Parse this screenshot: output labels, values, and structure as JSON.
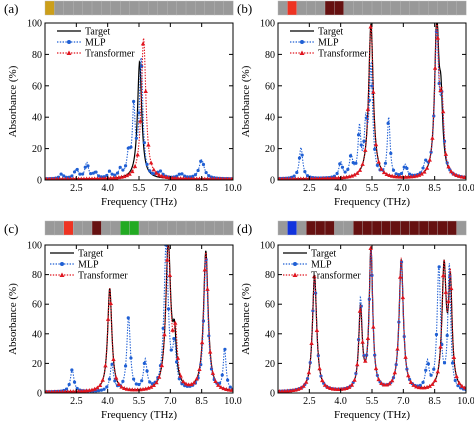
{
  "caption": "",
  "chart_data": [
    {
      "panel_label": "(a)",
      "type": "line",
      "xlabel": "Frequency (THz)",
      "ylabel": "Absorbance (%)",
      "xlim": [
        1.0,
        10.0
      ],
      "ylim": [
        0,
        100
      ],
      "xticks": [
        "2.5",
        "4.0",
        "5.5",
        "7.0",
        "8.5",
        "10.0"
      ],
      "yticks": [
        "0",
        "20",
        "40",
        "60",
        "80",
        "100"
      ],
      "legend_position": "top-center",
      "structure_bar": [
        "#cc9f1a",
        "#999999",
        "#999999",
        "#999999",
        "#999999",
        "#999999",
        "#999999",
        "#999999",
        "#999999",
        "#999999",
        "#999999",
        "#999999",
        "#999999",
        "#999999",
        "#999999",
        "#999999",
        "#999999",
        "#999999",
        "#999999",
        "#999999"
      ],
      "series": [
        {
          "name": "Target",
          "color": "#000000",
          "style": "solid",
          "peaks": [
            [
              5.53,
              75,
              0.12
            ]
          ]
        },
        {
          "name": "MLP",
          "color": "#1f5fd4",
          "style": "dotted",
          "marker": "circle",
          "peaks": [
            [
              1.8,
              3,
              0.1
            ],
            [
              2.5,
              6,
              0.12
            ],
            [
              3.0,
              10,
              0.1
            ],
            [
              3.4,
              4,
              0.1
            ],
            [
              4.1,
              4,
              0.1
            ],
            [
              4.6,
              5,
              0.1
            ],
            [
              5.0,
              14,
              0.1
            ],
            [
              5.25,
              42,
              0.08
            ],
            [
              5.6,
              75,
              0.1
            ],
            [
              6.5,
              4,
              0.15
            ],
            [
              7.5,
              3,
              0.15
            ],
            [
              8.5,
              12,
              0.15
            ]
          ]
        },
        {
          "name": "Transformer",
          "color": "#e0151f",
          "style": "dotted",
          "marker": "triangle",
          "peaks": [
            [
              5.72,
              90,
              0.13
            ]
          ]
        }
      ]
    },
    {
      "panel_label": "(b)",
      "type": "line",
      "xlabel": "Frequency (THz)",
      "ylabel": "Absorbance (%)",
      "xlim": [
        1.0,
        10.0
      ],
      "ylim": [
        0,
        100
      ],
      "xticks": [
        "2.5",
        "4.0",
        "5.5",
        "7.0",
        "8.5",
        "10.0"
      ],
      "yticks": [
        "0",
        "20",
        "40",
        "60",
        "80",
        "100"
      ],
      "legend_position": "top-center",
      "structure_bar": [
        "#999999",
        "#ee3322",
        "#999999",
        "#999999",
        "#999999",
        "#661111",
        "#661111",
        "#999999",
        "#999999",
        "#999999",
        "#999999",
        "#999999",
        "#999999",
        "#999999",
        "#999999",
        "#999999",
        "#999999",
        "#999999",
        "#999999",
        "#999999"
      ],
      "series": [
        {
          "name": "Target",
          "color": "#000000",
          "style": "solid",
          "peaks": [
            [
              5.45,
              99,
              0.13
            ],
            [
              8.6,
              97,
              0.12
            ],
            [
              8.8,
              40,
              0.1
            ]
          ]
        },
        {
          "name": "MLP",
          "color": "#1f5fd4",
          "style": "dotted",
          "marker": "circle",
          "peaks": [
            [
              2.1,
              20,
              0.1
            ],
            [
              4.0,
              10,
              0.1
            ],
            [
              4.5,
              13,
              0.1
            ],
            [
              4.9,
              30,
              0.08
            ],
            [
              5.2,
              30,
              0.08
            ],
            [
              5.45,
              70,
              0.1
            ],
            [
              6.3,
              38,
              0.08
            ],
            [
              7.1,
              8,
              0.1
            ],
            [
              8.05,
              7,
              0.1
            ],
            [
              8.6,
              90,
              0.12
            ],
            [
              8.85,
              38,
              0.1
            ]
          ]
        },
        {
          "name": "Transformer",
          "color": "#e0151f",
          "style": "dotted",
          "marker": "triangle",
          "peaks": [
            [
              5.45,
              98,
              0.13
            ],
            [
              8.6,
              96,
              0.12
            ],
            [
              8.85,
              40,
              0.1
            ]
          ]
        }
      ]
    },
    {
      "panel_label": "(c)",
      "type": "line",
      "xlabel": "Frequency (THz)",
      "ylabel": "Absorbance (%)",
      "xlim": [
        1.0,
        10.0
      ],
      "ylim": [
        0,
        100
      ],
      "xticks": [
        "2.5",
        "4.0",
        "5.5",
        "7.0",
        "8.5",
        "10.0"
      ],
      "yticks": [
        "0",
        "20",
        "40",
        "60",
        "80",
        "100"
      ],
      "legend_position": "top-left",
      "structure_bar": [
        "#999999",
        "#999999",
        "#ee3322",
        "#999999",
        "#999999",
        "#661111",
        "#999999",
        "#999999",
        "#22aa22",
        "#22aa22",
        "#999999",
        "#999999",
        "#999999",
        "#999999",
        "#999999",
        "#999999",
        "#999999",
        "#999999",
        "#999999",
        "#999999"
      ],
      "series": [
        {
          "name": "Target",
          "color": "#000000",
          "style": "solid",
          "peaks": [
            [
              4.1,
              70,
              0.12
            ],
            [
              6.9,
              99,
              0.14
            ],
            [
              7.2,
              30,
              0.1
            ],
            [
              8.7,
              95,
              0.13
            ]
          ]
        },
        {
          "name": "MLP",
          "color": "#1f5fd4",
          "style": "dotted",
          "marker": "circle",
          "peaks": [
            [
              2.3,
              15,
              0.1
            ],
            [
              4.2,
              18,
              0.1
            ],
            [
              5.0,
              50,
              0.1
            ],
            [
              5.8,
              20,
              0.1
            ],
            [
              6.8,
              100,
              0.12
            ],
            [
              7.2,
              28,
              0.1
            ],
            [
              8.7,
              90,
              0.12
            ],
            [
              9.6,
              28,
              0.08
            ]
          ]
        },
        {
          "name": "Transformer",
          "color": "#e0151f",
          "style": "dotted",
          "marker": "triangle",
          "peaks": [
            [
              4.1,
              70,
              0.12
            ],
            [
              6.9,
              98,
              0.14
            ],
            [
              7.25,
              32,
              0.1
            ],
            [
              8.7,
              94,
              0.13
            ]
          ]
        }
      ]
    },
    {
      "panel_label": "(d)",
      "type": "line",
      "xlabel": "Frequency (THz)",
      "ylabel": "Absorbance (%)",
      "xlim": [
        1.0,
        10.0
      ],
      "ylim": [
        0,
        100
      ],
      "xticks": [
        "2.5",
        "4.0",
        "5.5",
        "7.0",
        "8.5",
        "10.0"
      ],
      "yticks": [
        "0",
        "20",
        "40",
        "60",
        "80",
        "100"
      ],
      "legend_position": "top-left",
      "structure_bar": [
        "#999999",
        "#1133dd",
        "#999999",
        "#661111",
        "#661111",
        "#661111",
        "#999999",
        "#999999",
        "#661111",
        "#661111",
        "#661111",
        "#661111",
        "#661111",
        "#661111",
        "#661111",
        "#661111",
        "#661111",
        "#661111",
        "#661111",
        "#999999"
      ],
      "series": [
        {
          "name": "Target",
          "color": "#000000",
          "style": "solid",
          "peaks": [
            [
              2.75,
              79,
              0.12
            ],
            [
              4.95,
              55,
              0.1
            ],
            [
              5.45,
              96,
              0.1
            ],
            [
              6.9,
              89,
              0.12
            ],
            [
              8.95,
              82,
              0.12
            ],
            [
              9.25,
              70,
              0.1
            ]
          ]
        },
        {
          "name": "MLP",
          "color": "#1f5fd4",
          "style": "dotted",
          "marker": "circle",
          "peaks": [
            [
              2.75,
              78,
              0.12
            ],
            [
              4.95,
              60,
              0.1
            ],
            [
              5.45,
              95,
              0.1
            ],
            [
              6.9,
              88,
              0.12
            ],
            [
              8.15,
              18,
              0.1
            ],
            [
              8.7,
              83,
              0.1
            ],
            [
              9.2,
              84,
              0.08
            ]
          ]
        },
        {
          "name": "Transformer",
          "color": "#e0151f",
          "style": "dotted",
          "marker": "triangle",
          "peaks": [
            [
              2.75,
              79,
              0.12
            ],
            [
              4.95,
              55,
              0.1
            ],
            [
              5.45,
              96,
              0.1
            ],
            [
              6.9,
              90,
              0.12
            ],
            [
              8.95,
              82,
              0.12
            ],
            [
              9.25,
              72,
              0.1
            ]
          ]
        }
      ]
    }
  ]
}
